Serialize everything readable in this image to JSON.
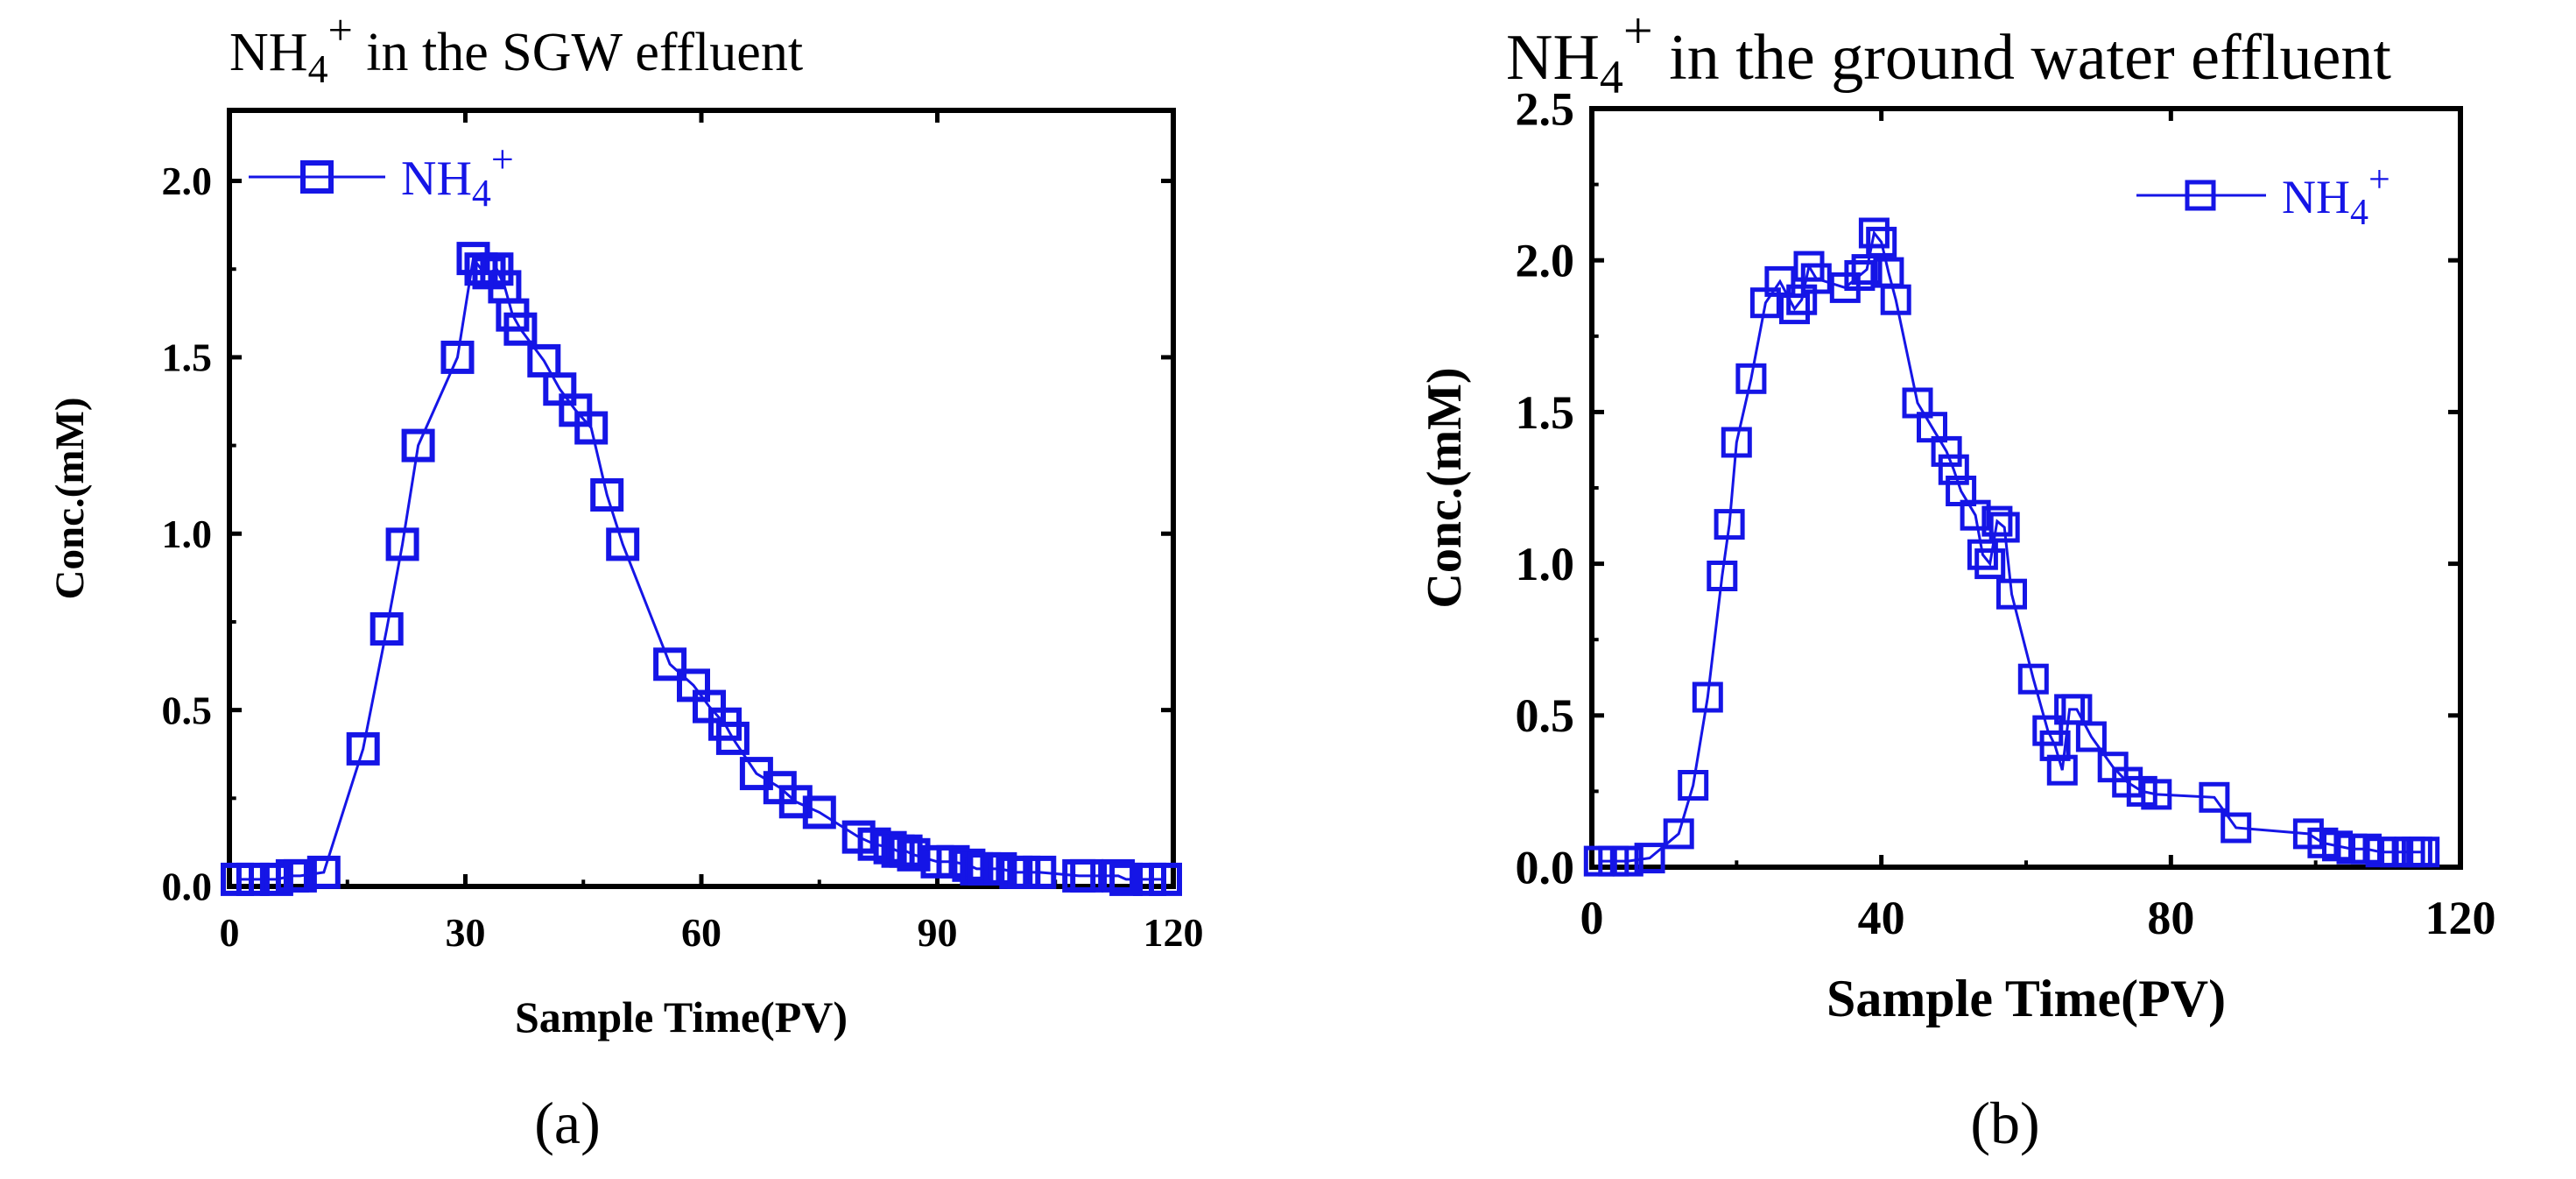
{
  "colors": {
    "series": "#1515e6",
    "axis": "#000000",
    "background": "#ffffff"
  },
  "chart_data": [
    {
      "type": "line",
      "panel_label": "(a)",
      "title": {
        "base": "NH",
        "sub": "4",
        "sup": "+",
        "rest": " in the SGW effluent"
      },
      "xlabel": "Sample Time(PV)",
      "ylabel": "Conc.(mM)",
      "xlim": [
        0,
        120
      ],
      "ylim": [
        0,
        2.2
      ],
      "xticks": [
        0,
        30,
        60,
        90,
        120
      ],
      "yticks": [
        0.0,
        0.5,
        1.0,
        1.5,
        2.0
      ],
      "xtick_labels": [
        "0",
        "30",
        "60",
        "90",
        "120"
      ],
      "ytick_labels": [
        "0.0",
        "0.5",
        "1.0",
        "1.5",
        "2.0"
      ],
      "legend": {
        "position": "top-left",
        "base": "NH",
        "sub": "4",
        "sup": "+"
      },
      "series": [
        {
          "name": "NH4+",
          "marker": "open-square",
          "x": [
            1,
            3,
            6,
            8,
            9,
            12,
            17,
            20,
            22,
            24,
            29,
            31,
            32,
            33,
            34,
            35,
            36,
            37,
            40,
            42,
            44,
            46,
            48,
            50,
            56,
            59,
            61,
            63,
            64,
            67,
            70,
            72,
            75,
            80,
            82,
            84,
            85,
            86,
            87,
            90,
            92,
            94,
            95,
            96,
            98,
            100,
            101,
            103,
            108,
            109,
            113,
            114,
            117,
            119
          ],
          "y": [
            0.02,
            0.02,
            0.02,
            0.03,
            0.03,
            0.04,
            0.39,
            0.73,
            0.97,
            1.25,
            1.5,
            1.78,
            1.75,
            1.74,
            1.75,
            1.7,
            1.62,
            1.58,
            1.49,
            1.41,
            1.35,
            1.3,
            1.11,
            0.97,
            0.63,
            0.57,
            0.51,
            0.46,
            0.42,
            0.32,
            0.28,
            0.24,
            0.21,
            0.14,
            0.12,
            0.11,
            0.1,
            0.1,
            0.09,
            0.07,
            0.07,
            0.06,
            0.05,
            0.05,
            0.05,
            0.04,
            0.04,
            0.04,
            0.03,
            0.03,
            0.03,
            0.02,
            0.02,
            0.02
          ]
        }
      ]
    },
    {
      "type": "line",
      "panel_label": "(b)",
      "title": {
        "base": "NH",
        "sub": "4",
        "sup": "+",
        "rest": " in the ground water effluent"
      },
      "xlabel": "Sample Time(PV)",
      "ylabel": "Conc.(mM)",
      "xlim": [
        0,
        120
      ],
      "ylim": [
        0,
        2.5
      ],
      "xticks": [
        0,
        40,
        80,
        120
      ],
      "yticks": [
        0.0,
        0.5,
        1.0,
        1.5,
        2.0,
        2.5
      ],
      "xtick_labels": [
        "0",
        "40",
        "80",
        "120"
      ],
      "ytick_labels": [
        "0.0",
        "0.5",
        "1.0",
        "1.5",
        "2.0",
        "2.5"
      ],
      "legend": {
        "position": "top-right",
        "base": "NH",
        "sub": "4",
        "sup": "+"
      },
      "series": [
        {
          "name": "NH4+",
          "marker": "open-square",
          "x": [
            1,
            3,
            5,
            8,
            12,
            14,
            16,
            18,
            19,
            20,
            22,
            24,
            26,
            28,
            29,
            30,
            31,
            35,
            37,
            38,
            39,
            40,
            41,
            42,
            45,
            47,
            49,
            50,
            51,
            53,
            54,
            55,
            56,
            57,
            58,
            61,
            63,
            64,
            65,
            66,
            67,
            69,
            72,
            74,
            76,
            78,
            86,
            89,
            99,
            101,
            103,
            105,
            107,
            109,
            111,
            113,
            114,
            115
          ],
          "y": [
            0.02,
            0.02,
            0.02,
            0.03,
            0.11,
            0.27,
            0.56,
            0.96,
            1.13,
            1.4,
            1.61,
            1.86,
            1.93,
            1.84,
            1.87,
            1.98,
            1.94,
            1.91,
            1.95,
            1.97,
            2.09,
            2.06,
            1.96,
            1.87,
            1.53,
            1.45,
            1.37,
            1.31,
            1.24,
            1.16,
            1.03,
            1.0,
            1.14,
            1.12,
            0.9,
            0.62,
            0.45,
            0.4,
            0.32,
            0.52,
            0.52,
            0.43,
            0.33,
            0.28,
            0.25,
            0.24,
            0.23,
            0.13,
            0.11,
            0.08,
            0.07,
            0.06,
            0.06,
            0.05,
            0.05,
            0.05,
            0.05,
            0.05
          ]
        }
      ]
    }
  ]
}
